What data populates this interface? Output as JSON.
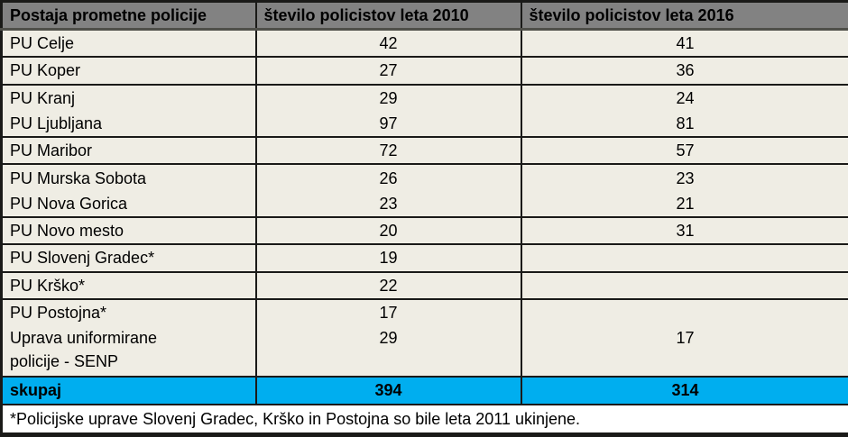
{
  "chart_data": {
    "type": "table",
    "columns": [
      "Postaja prometne policije",
      "število policistov leta 2010",
      "število policistov leta 2016"
    ],
    "rows": [
      [
        "PU Celje",
        42,
        41
      ],
      [
        "PU Koper",
        27,
        36
      ],
      [
        "PU Kranj",
        29,
        24
      ],
      [
        "PU Ljubljana",
        97,
        81
      ],
      [
        "PU Maribor",
        72,
        57
      ],
      [
        "PU Murska Sobota",
        26,
        23
      ],
      [
        "PU Nova Gorica",
        23,
        21
      ],
      [
        "PU Novo mesto",
        20,
        31
      ],
      [
        "PU Slovenj Gradec*",
        19,
        null
      ],
      [
        "PU Krško*",
        22,
        null
      ],
      [
        "PU Postojna*",
        17,
        null
      ],
      [
        "Uprava uniformirane policije - SENP",
        29,
        17
      ]
    ],
    "total_row": [
      "skupaj",
      394,
      314
    ],
    "footnote": "*Policijske uprave Slovenj Gradec, Krško in Postojna so bile leta 2011 ukinjene.",
    "layout": {
      "merged_groups": [
        [
          "PU Kranj",
          "PU Ljubljana"
        ],
        [
          "PU Murska Sobota",
          "PU Nova Gorica"
        ],
        [
          "PU Postojna*",
          "Uprava uniformirane policije - SENP"
        ]
      ],
      "grid": true
    }
  },
  "colors": {
    "header_bg": "#828282",
    "row_bg": "#efede4",
    "total_bg": "#00aeef",
    "footnote_bg": "#ffffff",
    "grid": "#1a1a18",
    "text": "#000000"
  }
}
